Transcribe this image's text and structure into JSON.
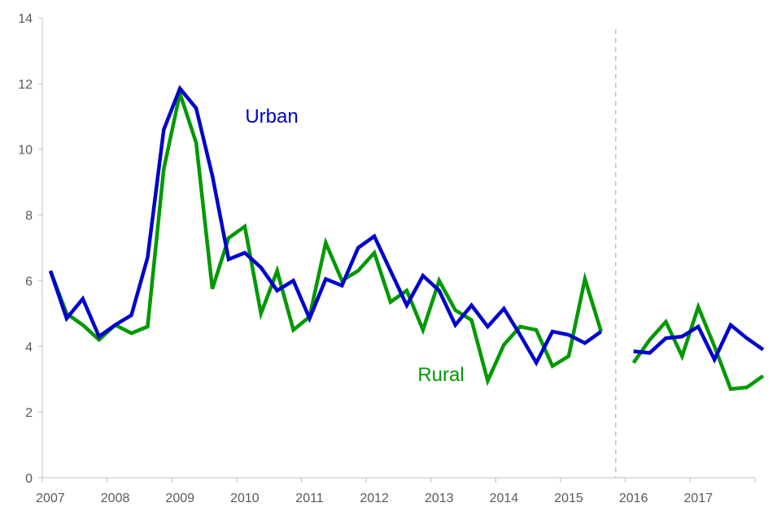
{
  "chart_data": {
    "type": "line",
    "title": "",
    "xlabel": "",
    "ylabel": "",
    "ylim": [
      0,
      14
    ],
    "yticks": [
      "0",
      "2",
      "4",
      "6",
      "8",
      "10",
      "12",
      "14"
    ],
    "xticks": [
      "2007",
      "2008",
      "2009",
      "2010",
      "2011",
      "2012",
      "2013",
      "2014",
      "2015",
      "2016",
      "2017"
    ],
    "xlim": [
      2007,
      2018
    ],
    "grid": false,
    "break_marker_x": 2015.85,
    "series": [
      {
        "name": "Urban",
        "color": "#0000CC",
        "segments": [
          {
            "x": [
              2007.125,
              2007.375,
              2007.625,
              2007.875,
              2008.125,
              2008.375,
              2008.625,
              2008.875,
              2009.125,
              2009.375,
              2009.625,
              2009.875,
              2010.125,
              2010.375,
              2010.625,
              2010.875,
              2011.125,
              2011.375,
              2011.625,
              2011.875,
              2012.125,
              2012.375,
              2012.625,
              2012.875,
              2013.125,
              2013.375,
              2013.625,
              2013.875,
              2014.125,
              2014.375,
              2014.625,
              2014.875,
              2015.125,
              2015.375,
              2015.625
            ],
            "y": [
              6.3,
              4.85,
              5.45,
              4.3,
              4.65,
              4.95,
              6.7,
              10.6,
              11.85,
              11.25,
              9.2,
              6.65,
              6.85,
              6.4,
              5.7,
              6.0,
              4.85,
              6.05,
              5.85,
              7.0,
              7.35,
              6.3,
              5.25,
              6.15,
              5.7,
              4.65,
              5.25,
              4.6,
              5.15,
              4.35,
              3.5,
              4.45,
              4.35,
              4.1,
              4.45
            ]
          },
          {
            "x": [
              2016.125,
              2016.375,
              2016.625,
              2016.875,
              2017.125,
              2017.375,
              2017.625,
              2017.875,
              2018.125
            ],
            "y": [
              3.85,
              3.8,
              4.25,
              4.3,
              4.6,
              3.6,
              4.65,
              4.25,
              3.9
            ]
          }
        ]
      },
      {
        "name": "Rural",
        "color": "#009900",
        "segments": [
          {
            "x": [
              2007.125,
              2007.375,
              2007.625,
              2007.875,
              2008.125,
              2008.375,
              2008.625,
              2008.875,
              2009.125,
              2009.375,
              2009.625,
              2009.875,
              2010.125,
              2010.375,
              2010.625,
              2010.875,
              2011.125,
              2011.375,
              2011.625,
              2011.875,
              2012.125,
              2012.375,
              2012.625,
              2012.875,
              2013.125,
              2013.375,
              2013.625,
              2013.875,
              2014.125,
              2014.375,
              2014.625,
              2014.875,
              2015.125,
              2015.375,
              2015.625
            ],
            "y": [
              6.3,
              5.0,
              4.65,
              4.2,
              4.65,
              4.4,
              4.6,
              9.4,
              11.7,
              10.2,
              5.75,
              7.3,
              7.65,
              5.0,
              6.3,
              4.5,
              4.9,
              7.15,
              6.0,
              6.3,
              6.85,
              5.35,
              5.7,
              4.5,
              6.0,
              5.1,
              4.8,
              2.95,
              4.05,
              4.6,
              4.5,
              3.4,
              3.7,
              6.05,
              4.45
            ]
          },
          {
            "x": [
              2016.125,
              2016.375,
              2016.625,
              2016.875,
              2017.125,
              2017.375,
              2017.625,
              2017.875,
              2018.125
            ],
            "y": [
              3.5,
              4.2,
              4.75,
              3.7,
              5.2,
              4.0,
              2.7,
              2.75,
              3.1
            ]
          }
        ]
      }
    ]
  }
}
